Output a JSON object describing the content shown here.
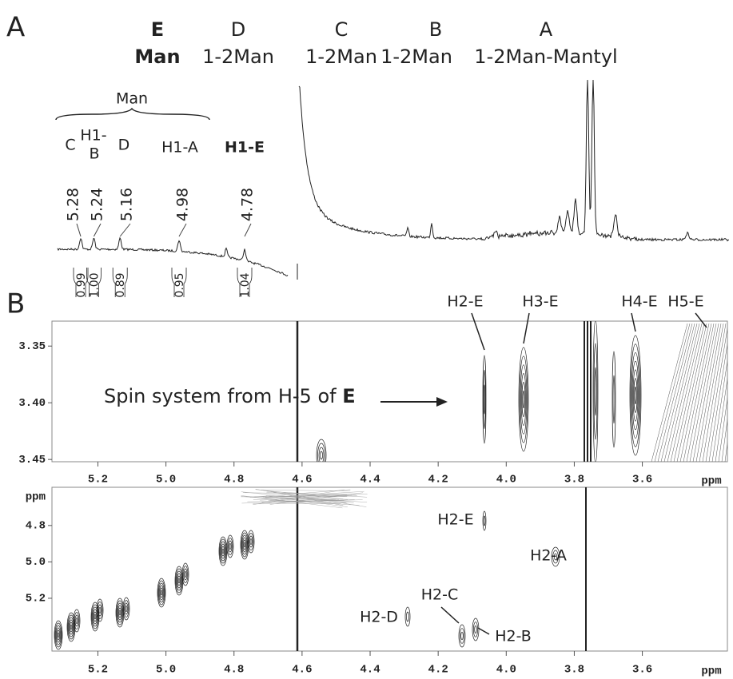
{
  "panel_labels": [
    "A",
    "B"
  ],
  "residues": [
    {
      "letter": "E",
      "name": "Man"
    },
    {
      "letter": "D",
      "name": "1-2Man"
    },
    {
      "letter": "C",
      "name": "1-2Man"
    },
    {
      "letter": "B",
      "name": "1-2Man"
    },
    {
      "letter": "A",
      "name": "1-2Man-Mantyl"
    }
  ],
  "spectrum_1d": {
    "group_label": "Man",
    "h1_prefix": "H1-",
    "peaks": [
      {
        "label": "C",
        "shift": 5.28,
        "integral": 0.99
      },
      {
        "label": "B",
        "shift": 5.24,
        "integral": {
          "value": 1,
          "label": "1.00"
        }
      },
      {
        "label": "D",
        "shift": 5.16,
        "integral": 0.89
      },
      {
        "label": "H1-A",
        "shift": 4.98,
        "integral": 0.95
      },
      {
        "label": "H1-E",
        "shift": 4.78,
        "integral": 1.04
      }
    ]
  },
  "chart_data": [
    {
      "type": "contour",
      "xlim": [
        5.335,
        3.35
      ],
      "ylim": [
        3.328,
        3.452
      ],
      "xticks": [
        5.2,
        {
          "value": 5,
          "label": "5.0"
        },
        4.8,
        4.6,
        4.4,
        4.2,
        {
          "value": 4,
          "label": "4.0"
        },
        3.8,
        3.6
      ],
      "yticks": [
        3.35,
        {
          "value": 3.4,
          "label": "3.40"
        },
        3.45
      ],
      "xlabel": "ppm",
      "annotation": {
        "text": "Spin system from H-5 of",
        "emphasis": "E"
      },
      "peak_labels": [
        "H2-E",
        "H3-E",
        "H4-E",
        "H5-E"
      ]
    },
    {
      "type": "contour",
      "xlim": [
        5.335,
        3.35
      ],
      "ylim": [
        4.59,
        5.49
      ],
      "xticks": [
        5.2,
        {
          "value": 5,
          "label": "5.0"
        },
        4.8,
        4.6,
        4.4,
        4.2,
        {
          "value": 4,
          "label": "4.0"
        },
        3.8,
        3.6
      ],
      "yticks": [
        4.8,
        {
          "value": 5,
          "label": "5.0"
        },
        5.2
      ],
      "xlabel": "ppm",
      "ylabel": "ppm",
      "peak_labels": [
        "H2-E",
        "H2-A",
        "H2-C",
        "H2-D",
        "H2-B"
      ]
    }
  ]
}
